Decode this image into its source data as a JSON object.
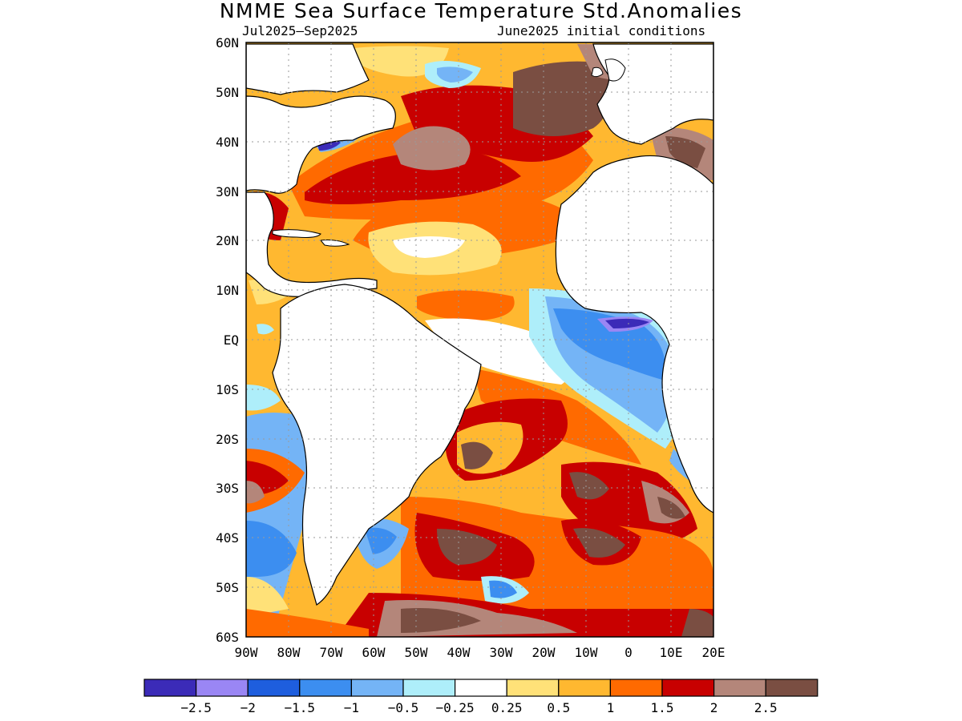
{
  "title": "NMME Sea Surface Temperature Std.Anomalies",
  "subtitle_left": "Jul2025–Sep2025",
  "subtitle_right": "June2025 initial conditions",
  "lat_labels": [
    "60N",
    "50N",
    "40N",
    "30N",
    "20N",
    "10N",
    "EQ",
    "10S",
    "20S",
    "30S",
    "40S",
    "50S",
    "60S"
  ],
  "lon_labels": [
    "90W",
    "80W",
    "70W",
    "60W",
    "50W",
    "40W",
    "30W",
    "20W",
    "10W",
    "0",
    "10E",
    "20E"
  ],
  "colorbar": {
    "colors": [
      "#3b2bb8",
      "#9a86f4",
      "#1e5ede",
      "#3c8ef0",
      "#74b4f6",
      "#aeeefa",
      "#ffffff",
      "#ffe178",
      "#ffb830",
      "#ff6a00",
      "#c80000",
      "#b4867a",
      "#7a4e42"
    ],
    "labels": [
      "−2.5",
      "−2",
      "−1.5",
      "−1",
      "−0.5",
      "−0.25",
      "0.25",
      "0.5",
      "1",
      "1.5",
      "2",
      "2.5"
    ]
  }
}
